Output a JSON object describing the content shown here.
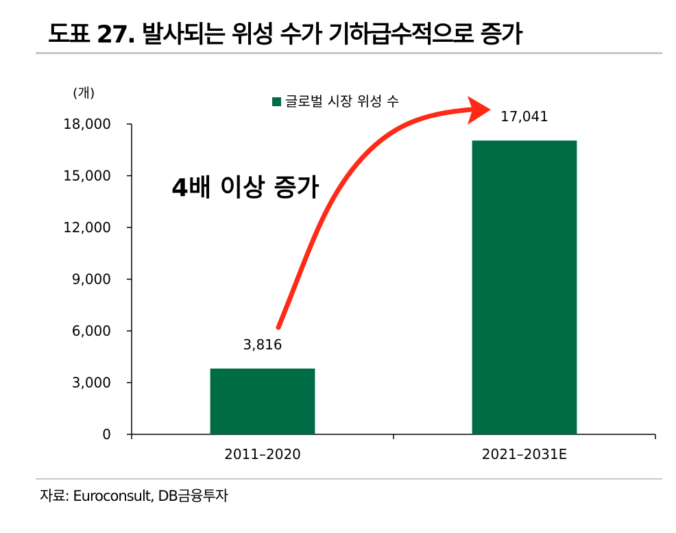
{
  "title": "도표 27. 발사되는 위성 수가 기하급수적으로 증가",
  "source": "자료: Euroconsult, DB금융투자",
  "colors": {
    "bar": "#006c45",
    "arrow": "#ff2a16",
    "axis": "#000000",
    "rule": "#c8c8c8"
  },
  "chart_data": {
    "type": "bar",
    "unit_label": "(개)",
    "categories": [
      "2011–2020",
      "2021–2031E"
    ],
    "series": [
      {
        "name": "글로벌 시장 위성 수",
        "values": [
          3816,
          17041
        ]
      }
    ],
    "value_labels": [
      "3,816",
      "17,041"
    ],
    "ylim": [
      0,
      18000
    ],
    "yticks": [
      0,
      3000,
      6000,
      9000,
      12000,
      15000,
      18000
    ],
    "ytick_labels": [
      "0",
      "3,000",
      "6,000",
      "9,000",
      "12,000",
      "15,000",
      "18,000"
    ],
    "grid": false,
    "legend_position": "top-center",
    "annotation": "4배 이상 증가"
  }
}
